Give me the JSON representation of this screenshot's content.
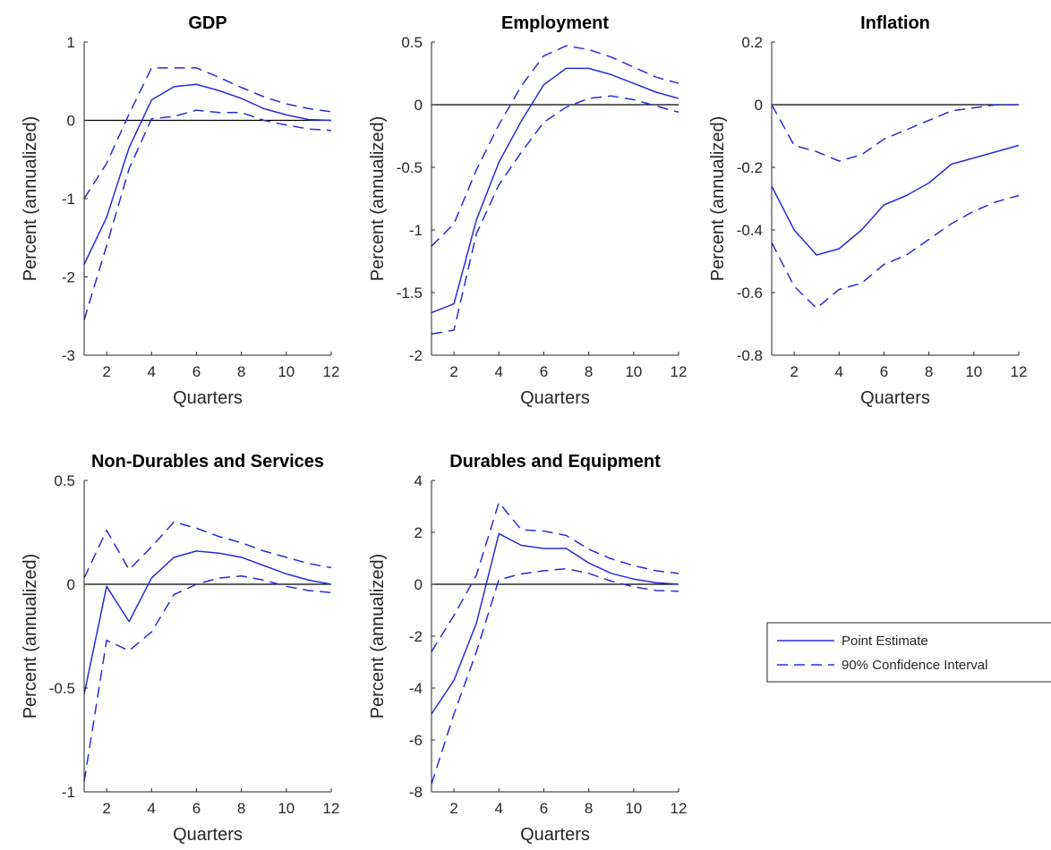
{
  "colors": {
    "series": "#2b2bd8",
    "zero_line": "#000000",
    "axes": "#262626",
    "background": "#ffffff"
  },
  "chart_data": [
    {
      "type": "line",
      "title": "GDP",
      "xlabel": "Quarters",
      "ylabel": "Percent (annualized)",
      "xlim": [
        1,
        12
      ],
      "ylim": [
        -3,
        1
      ],
      "xticks": [
        2,
        4,
        6,
        8,
        10,
        12
      ],
      "yticks": [
        -3,
        -2,
        -1,
        0,
        1
      ],
      "x": [
        1,
        2,
        3,
        4,
        5,
        6,
        7,
        8,
        9,
        10,
        11,
        12
      ],
      "series": [
        {
          "values": [
            -1.84,
            -1.24,
            -0.35,
            0.26,
            0.43,
            0.46,
            0.38,
            0.28,
            0.15,
            0.07,
            0.01,
            0.0
          ],
          "style": "solid"
        },
        {
          "values": [
            -1.0,
            -0.55,
            0.08,
            0.67,
            0.67,
            0.67,
            0.55,
            0.42,
            0.3,
            0.21,
            0.15,
            0.11
          ],
          "style": "dashed"
        },
        {
          "values": [
            -2.55,
            -1.6,
            -0.62,
            0.02,
            0.05,
            0.13,
            0.1,
            0.1,
            0.0,
            -0.06,
            -0.11,
            -0.13
          ],
          "style": "dashed"
        }
      ],
      "zero_line": true
    },
    {
      "type": "line",
      "title": "Employment",
      "xlabel": "Quarters",
      "ylabel": "Percent (annualized)",
      "xlim": [
        1,
        12
      ],
      "ylim": [
        -2,
        0.5
      ],
      "xticks": [
        2,
        4,
        6,
        8,
        10,
        12
      ],
      "yticks": [
        -2,
        -1.5,
        -1,
        -0.5,
        0,
        0.5
      ],
      "x": [
        1,
        2,
        3,
        4,
        5,
        6,
        7,
        8,
        9,
        10,
        11,
        12
      ],
      "series": [
        {
          "values": [
            -1.66,
            -1.59,
            -0.92,
            -0.46,
            -0.13,
            0.16,
            0.29,
            0.29,
            0.24,
            0.17,
            0.1,
            0.05
          ],
          "style": "solid"
        },
        {
          "values": [
            -1.13,
            -0.95,
            -0.52,
            -0.16,
            0.15,
            0.39,
            0.47,
            0.44,
            0.38,
            0.3,
            0.22,
            0.17
          ],
          "style": "dashed"
        },
        {
          "values": [
            -1.83,
            -1.8,
            -1.03,
            -0.64,
            -0.38,
            -0.14,
            -0.02,
            0.05,
            0.07,
            0.04,
            -0.01,
            -0.06
          ],
          "style": "dashed"
        }
      ],
      "zero_line": true
    },
    {
      "type": "line",
      "title": "Inflation",
      "xlabel": "Quarters",
      "ylabel": "Percent (annualized)",
      "xlim": [
        1,
        12
      ],
      "ylim": [
        -0.8,
        0.2
      ],
      "xticks": [
        2,
        4,
        6,
        8,
        10,
        12
      ],
      "yticks": [
        -0.8,
        -0.6,
        -0.4,
        -0.2,
        0,
        0.2
      ],
      "x": [
        1,
        2,
        3,
        4,
        5,
        6,
        7,
        8,
        9,
        10,
        11,
        12
      ],
      "series": [
        {
          "values": [
            -0.26,
            -0.4,
            -0.48,
            -0.46,
            -0.4,
            -0.32,
            -0.29,
            -0.25,
            -0.19,
            -0.17,
            -0.15,
            -0.13
          ],
          "style": "solid"
        },
        {
          "values": [
            -0.0,
            -0.13,
            -0.15,
            -0.18,
            -0.16,
            -0.11,
            -0.08,
            -0.05,
            -0.02,
            -0.01,
            -0.0,
            0.0
          ],
          "style": "dashed"
        },
        {
          "values": [
            -0.44,
            -0.58,
            -0.65,
            -0.59,
            -0.57,
            -0.51,
            -0.48,
            -0.43,
            -0.38,
            -0.34,
            -0.31,
            -0.29
          ],
          "style": "dashed"
        }
      ],
      "zero_line": true
    },
    {
      "type": "line",
      "title": "Non-Durables and Services",
      "xlabel": "Quarters",
      "ylabel": "Percent (annualized)",
      "xlim": [
        1,
        12
      ],
      "ylim": [
        -1,
        0.5
      ],
      "xticks": [
        2,
        4,
        6,
        8,
        10,
        12
      ],
      "yticks": [
        -1,
        -0.5,
        0,
        0.5
      ],
      "x": [
        1,
        2,
        3,
        4,
        5,
        6,
        7,
        8,
        9,
        10,
        11,
        12
      ],
      "series": [
        {
          "values": [
            -0.53,
            -0.01,
            -0.18,
            0.03,
            0.13,
            0.16,
            0.15,
            0.13,
            0.09,
            0.05,
            0.02,
            0.0
          ],
          "style": "solid"
        },
        {
          "values": [
            0.03,
            0.26,
            0.07,
            0.18,
            0.3,
            0.27,
            0.23,
            0.2,
            0.16,
            0.13,
            0.1,
            0.08
          ],
          "style": "dashed"
        },
        {
          "values": [
            -0.95,
            -0.27,
            -0.32,
            -0.23,
            -0.05,
            0.0,
            0.03,
            0.04,
            0.02,
            -0.01,
            -0.03,
            -0.04
          ],
          "style": "dashed"
        }
      ],
      "zero_line": true
    },
    {
      "type": "line",
      "title": "Durables and Equipment",
      "xlabel": "Quarters",
      "ylabel": "Percent (annualized)",
      "xlim": [
        1,
        12
      ],
      "ylim": [
        -8,
        4
      ],
      "xticks": [
        2,
        4,
        6,
        8,
        10,
        12
      ],
      "yticks": [
        -8,
        -6,
        -4,
        -2,
        0,
        2,
        4
      ],
      "x": [
        1,
        2,
        3,
        4,
        5,
        6,
        7,
        8,
        9,
        10,
        11,
        12
      ],
      "series": [
        {
          "values": [
            -5.0,
            -3.7,
            -1.5,
            1.95,
            1.5,
            1.38,
            1.38,
            0.82,
            0.42,
            0.2,
            0.06,
            0.0
          ],
          "style": "solid"
        },
        {
          "values": [
            -2.6,
            -1.2,
            0.35,
            3.15,
            2.1,
            2.05,
            1.88,
            1.35,
            0.98,
            0.72,
            0.52,
            0.42
          ],
          "style": "dashed"
        },
        {
          "values": [
            -7.7,
            -5.0,
            -2.6,
            0.18,
            0.4,
            0.52,
            0.6,
            0.42,
            0.12,
            -0.1,
            -0.24,
            -0.27
          ],
          "style": "dashed"
        }
      ],
      "zero_line": true
    }
  ],
  "legend": {
    "entries": [
      {
        "label": "Point Estimate",
        "style": "solid"
      },
      {
        "label": "90% Confidence Interval",
        "style": "dashed"
      }
    ]
  }
}
